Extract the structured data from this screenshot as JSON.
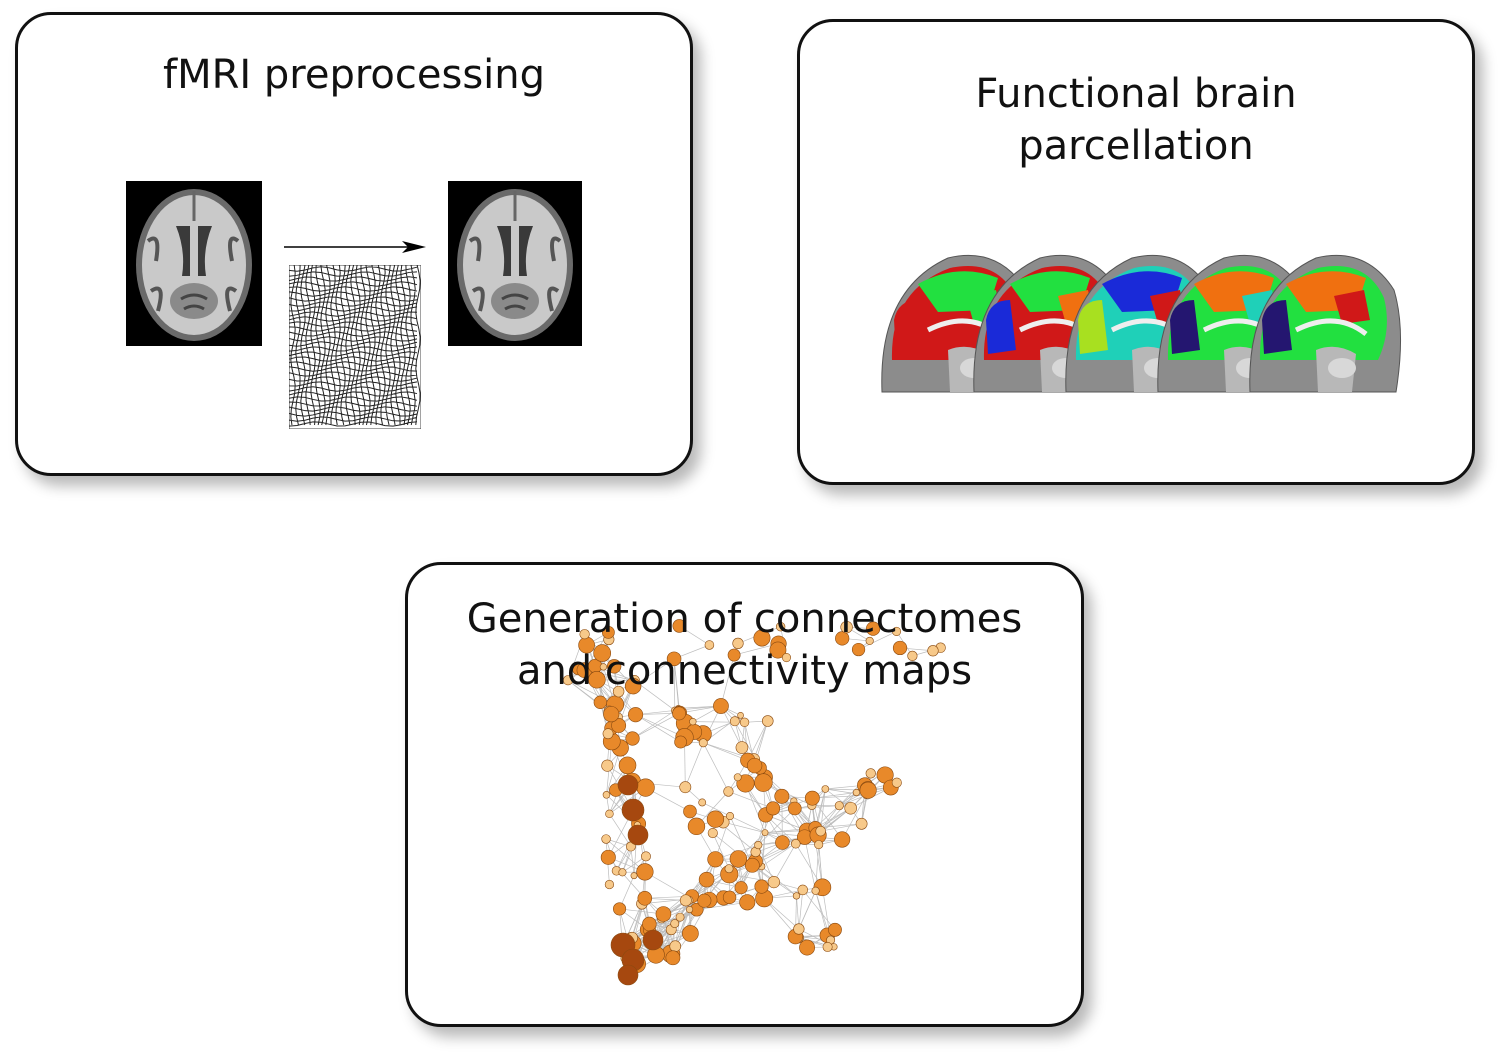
{
  "panels": {
    "preprocessing": {
      "title": "fMRI preprocessing"
    },
    "parcellation": {
      "title_line1": "Functional brain",
      "title_line2": "parcellation"
    },
    "connectome": {
      "title_line1": "Generation of connectomes",
      "title_line2": "and connectivity maps"
    }
  },
  "colors": {
    "panel_border": "#111111",
    "node_light": "#f7c98a",
    "node_mid": "#e8892a",
    "node_dark": "#a6480f",
    "edge": "#bdbdbd",
    "parcel_red": "#d01818",
    "parcel_green": "#22e040",
    "parcel_blue": "#1a2ad8",
    "parcel_teal": "#1fd0b8",
    "parcel_lime": "#a8e020",
    "parcel_navy": "#241670",
    "parcel_orange": "#f07010"
  },
  "icons": [
    "brain-mri-axial",
    "warp-grid",
    "arrow-right",
    "brain-sagittal-parcellation",
    "network-graph"
  ]
}
